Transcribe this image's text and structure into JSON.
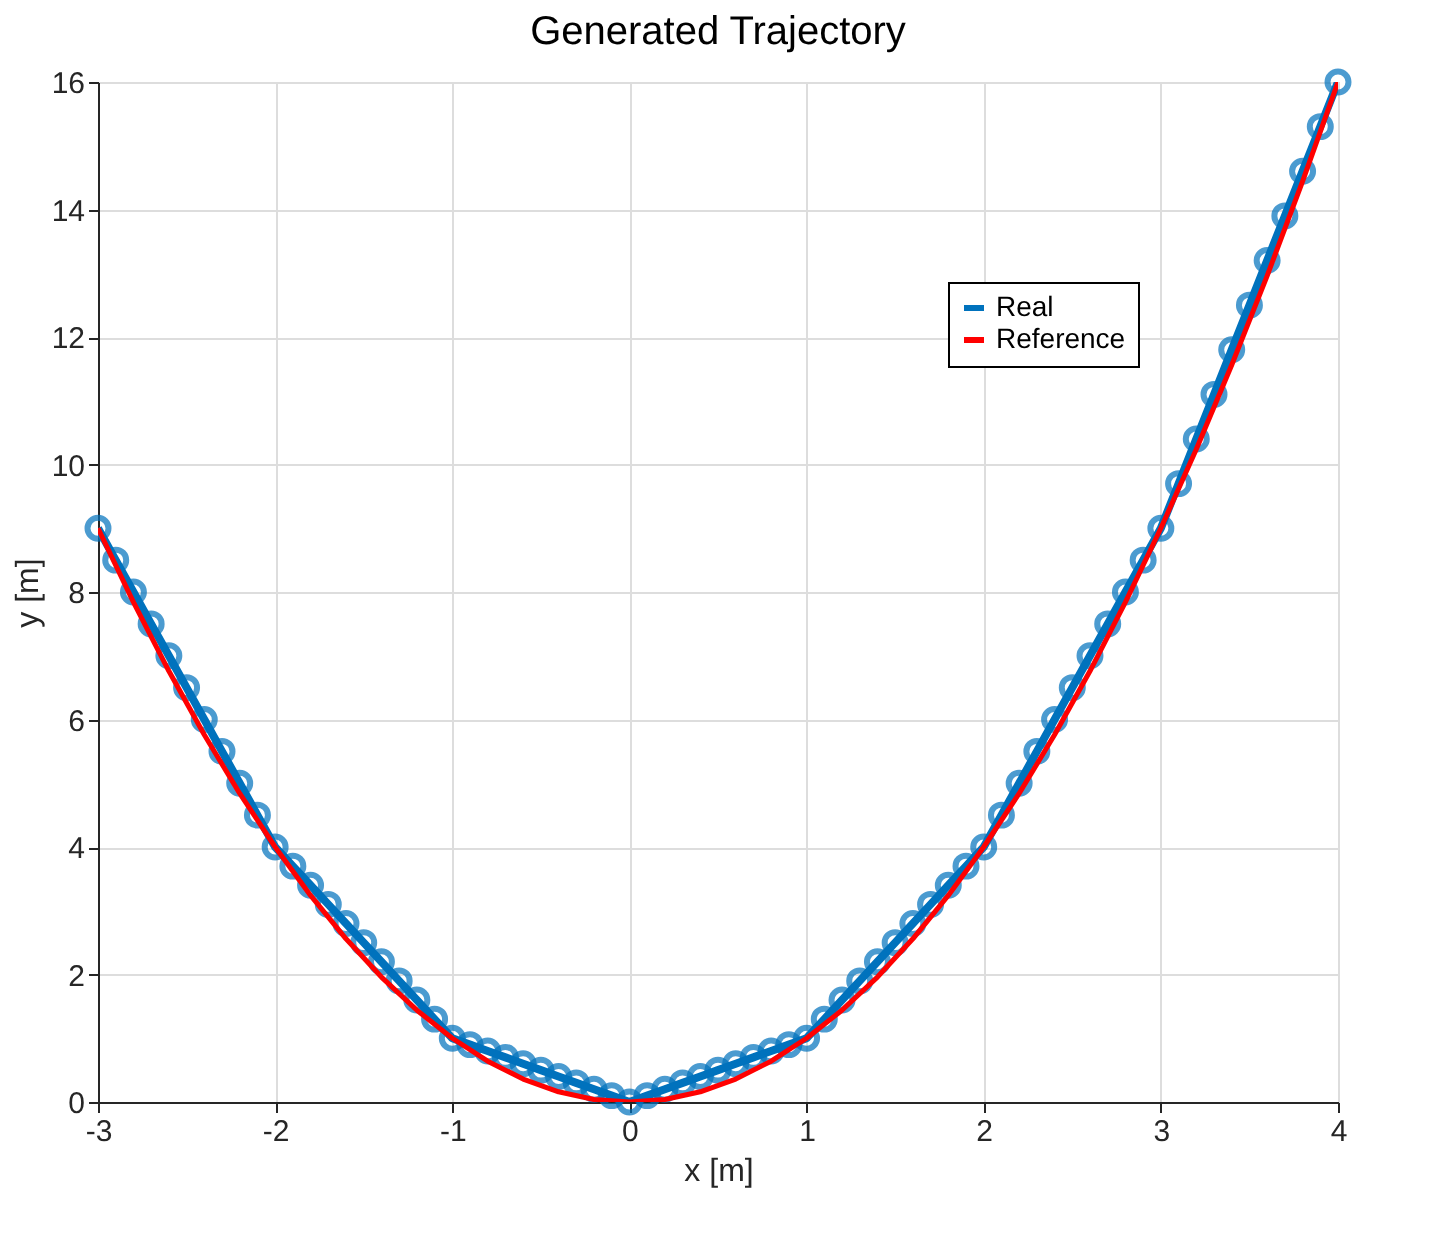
{
  "chart_data": {
    "type": "line",
    "title": "Generated Trajectory",
    "xlabel": "x [m]",
    "ylabel": "y [m]",
    "xlim": [
      -3,
      4
    ],
    "xticks": [
      -3,
      -2,
      -1,
      0,
      1,
      2,
      3,
      4
    ],
    "ylim": [
      0,
      16
    ],
    "yticks": [
      0,
      2,
      4,
      6,
      8,
      10,
      12,
      14,
      16
    ],
    "grid": true,
    "legend": "top right",
    "line_style": "solid",
    "series": [
      {
        "name": "Real",
        "color": "#0072bd",
        "marker": "circle",
        "x": [
          -3,
          -2.9,
          -2.8,
          -2.7,
          -2.6,
          -2.5,
          -2.4,
          -2.3,
          -2.2,
          -2.1,
          -2,
          -1.9,
          -1.8,
          -1.7,
          -1.6,
          -1.5,
          -1.4,
          -1.3,
          -1.2,
          -1.1,
          -1,
          -0.9,
          -0.8,
          -0.7,
          -0.6,
          -0.5,
          -0.4,
          -0.3,
          -0.2,
          -0.1,
          0,
          0.1,
          0.2,
          0.3,
          0.4,
          0.5,
          0.6,
          0.7,
          0.8,
          0.9,
          1,
          1.1,
          1.2,
          1.3,
          1.4,
          1.5,
          1.6,
          1.7,
          1.8,
          1.9,
          2,
          2.1,
          2.2,
          2.3,
          2.4,
          2.5,
          2.6,
          2.7,
          2.8,
          2.9,
          3,
          3.1,
          3.2,
          3.3,
          3.4,
          3.5,
          3.6,
          3.7,
          3.8,
          3.9,
          4
        ],
        "values": [
          9,
          8.5,
          8,
          7.5,
          7,
          6.5,
          6,
          5.5,
          5,
          4.5,
          4,
          3.7,
          3.4,
          3.1,
          2.8,
          2.5,
          2.2,
          1.9,
          1.6,
          1.3,
          1,
          0.9,
          0.8,
          0.7,
          0.6,
          0.5,
          0.4,
          0.3,
          0.2,
          0.1,
          0,
          0.1,
          0.2,
          0.3,
          0.4,
          0.5,
          0.6,
          0.7,
          0.8,
          0.9,
          1,
          1.3,
          1.6,
          1.9,
          2.2,
          2.5,
          2.8,
          3.1,
          3.4,
          3.7,
          4,
          4.5,
          5,
          5.5,
          6,
          6.5,
          7,
          7.5,
          8,
          8.5,
          9,
          9.7,
          10.4,
          11.1,
          11.8,
          12.5,
          13.2,
          13.9,
          14.6,
          15.3,
          16
        ]
      },
      {
        "name": "Reference",
        "color": "#ff0000",
        "marker": "none",
        "x": [
          -3,
          -2.8,
          -2.6,
          -2.4,
          -2.2,
          -2,
          -1.8,
          -1.6,
          -1.4,
          -1.2,
          -1,
          -0.8,
          -0.6,
          -0.4,
          -0.2,
          0,
          0.2,
          0.4,
          0.6,
          0.8,
          1,
          1.2,
          1.4,
          1.6,
          1.8,
          2,
          2.2,
          2.4,
          2.6,
          2.8,
          3,
          3.2,
          3.4,
          3.6,
          3.8,
          4
        ],
        "values": [
          9,
          7.84,
          6.76,
          5.76,
          4.84,
          4,
          3.24,
          2.56,
          1.96,
          1.44,
          1,
          0.64,
          0.36,
          0.16,
          0.04,
          0,
          0.04,
          0.16,
          0.36,
          0.64,
          1,
          1.44,
          1.96,
          2.56,
          3.24,
          4,
          4.84,
          5.76,
          6.76,
          7.84,
          9,
          10.24,
          11.56,
          12.96,
          14.44,
          16
        ]
      }
    ]
  }
}
